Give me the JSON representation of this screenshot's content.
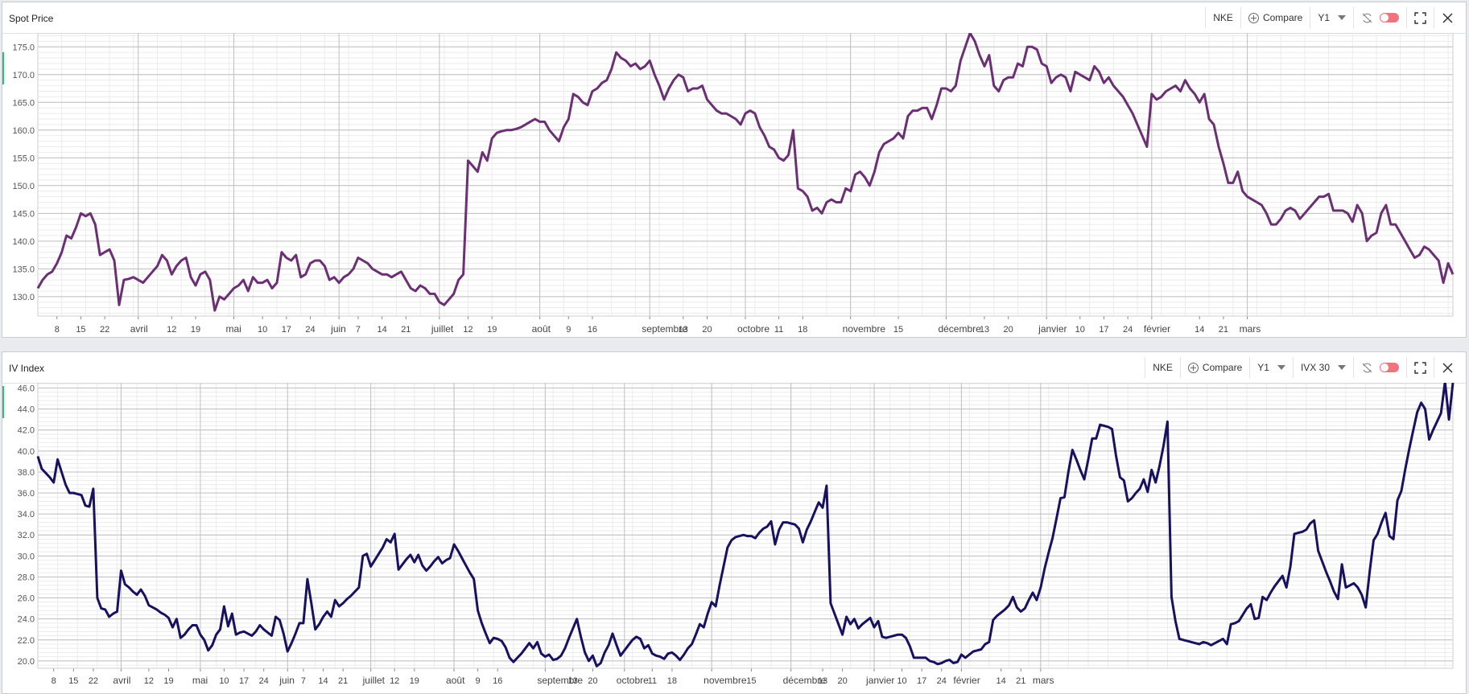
{
  "colors": {
    "spot_line": "#6b2f74",
    "iv_line": "#171160",
    "grid_major": "#bfbfbf",
    "grid_minor": "#ebebeb",
    "toggle": "#f2727e"
  },
  "months_axis": {
    "days": [
      {
        "label": "8",
        "i": 4
      },
      {
        "label": "15",
        "i": 9
      },
      {
        "label": "22",
        "i": 14
      },
      {
        "label": "avril",
        "i": 21,
        "major": true
      },
      {
        "label": "12",
        "i": 28
      },
      {
        "label": "19",
        "i": 33
      },
      {
        "label": "mai",
        "i": 41,
        "major": true
      },
      {
        "label": "10",
        "i": 47
      },
      {
        "label": "17",
        "i": 52
      },
      {
        "label": "24",
        "i": 57
      },
      {
        "label": "juin",
        "i": 63,
        "major": true
      },
      {
        "label": "7",
        "i": 67
      },
      {
        "label": "14",
        "i": 72
      },
      {
        "label": "21",
        "i": 77
      },
      {
        "label": "juillet",
        "i": 84,
        "major": true
      },
      {
        "label": "12",
        "i": 90
      },
      {
        "label": "19",
        "i": 95
      },
      {
        "label": "août",
        "i": 105,
        "major": true
      },
      {
        "label": "9",
        "i": 111
      },
      {
        "label": "16",
        "i": 116
      },
      {
        "label": "septembre",
        "i": 128,
        "major": true
      },
      {
        "label": "13",
        "i": 135
      },
      {
        "label": "20",
        "i": 140
      },
      {
        "label": "octobre",
        "i": 148,
        "major": true
      },
      {
        "label": "11",
        "i": 155
      },
      {
        "label": "18",
        "i": 160
      },
      {
        "label": "novembre",
        "i": 170,
        "major": true
      },
      {
        "label": "15",
        "i": 180
      },
      {
        "label": "décembre",
        "i": 190,
        "major": true
      },
      {
        "label": "13",
        "i": 198
      },
      {
        "label": "20",
        "i": 203
      },
      {
        "label": "janvier",
        "i": 211,
        "major": true
      },
      {
        "label": "10",
        "i": 218
      },
      {
        "label": "17",
        "i": 223
      },
      {
        "label": "24",
        "i": 228
      },
      {
        "label": "février",
        "i": 233,
        "major": true
      },
      {
        "label": "14",
        "i": 243
      },
      {
        "label": "21",
        "i": 248
      },
      {
        "label": "mars",
        "i": 253,
        "major": true
      }
    ]
  },
  "spot_panel": {
    "title": "Spot Price",
    "toolbar": {
      "ticker": "NKE",
      "compare": "Compare",
      "period": "Y1"
    }
  },
  "iv_panel": {
    "title": "IV Index",
    "toolbar": {
      "ticker": "NKE",
      "compare": "Compare",
      "period": "Y1",
      "measure": "IVX 30"
    }
  },
  "chart_data": [
    {
      "type": "line",
      "title": "Spot Price",
      "xlabel": "",
      "ylabel": "",
      "ylim": [
        126.5,
        177.5
      ],
      "yticks": [
        "175.0",
        "170.0",
        "165.0",
        "160.0",
        "155.0",
        "150.0",
        "145.0",
        "140.0",
        "135.0",
        "130.0"
      ],
      "grid": true,
      "series": [
        {
          "values": [
            131.5,
            133.0,
            134.0,
            134.5,
            136.0,
            138.0,
            141.0,
            140.5,
            142.5,
            145.0,
            144.5,
            145.0,
            143.0,
            137.5,
            138.0,
            138.5,
            136.5,
            128.5,
            133.0,
            133.2,
            133.5,
            133.0,
            132.5,
            133.5,
            134.5,
            135.5,
            137.5,
            136.5,
            134.0,
            135.5,
            136.5,
            137.0,
            133.5,
            132.0,
            134.0,
            134.5,
            133.0,
            127.5,
            130.0,
            129.5,
            130.5,
            131.5,
            132.0,
            133.0,
            131.0,
            133.5,
            132.5,
            132.5,
            133.0,
            131.5,
            132.5,
            138.0,
            137.0,
            136.5,
            137.5,
            133.5,
            134.0,
            136.0,
            136.5,
            136.5,
            135.5,
            133.0,
            133.5,
            132.5,
            133.5,
            134.0,
            135.0,
            137.0,
            136.5,
            136.0,
            135.0,
            134.5,
            134.0,
            134.0,
            133.5,
            134.0,
            134.5,
            133.0,
            131.5,
            131.0,
            132.0,
            131.5,
            130.5,
            130.5,
            129.0,
            128.5,
            129.5,
            130.5,
            133.0,
            134.0,
            154.5,
            153.5,
            152.5,
            156.0,
            154.5,
            158.5,
            159.5,
            159.8,
            160.0,
            160.0,
            160.2,
            160.5,
            161.0,
            161.5,
            162.0,
            161.5,
            161.5,
            160.0,
            159.0,
            158.0,
            160.5,
            162.0,
            166.5,
            166.0,
            165.0,
            164.5,
            167.0,
            167.5,
            168.5,
            169.0,
            171.0,
            174.0,
            173.0,
            172.5,
            171.5,
            172.0,
            171.0,
            171.5,
            172.5,
            170.0,
            168.0,
            165.5,
            167.5,
            169.0,
            170.0,
            169.5,
            167.0,
            167.5,
            167.5,
            168.0,
            165.5,
            164.5,
            163.5,
            163.0,
            163.0,
            162.5,
            162.0,
            161.0,
            163.0,
            163.5,
            163.0,
            160.5,
            159.0,
            157.0,
            156.5,
            155.0,
            154.5,
            155.5,
            160.0,
            149.5,
            149.0,
            148.0,
            145.5,
            146.0,
            145.0,
            147.0,
            147.5,
            147.0,
            147.0,
            149.5,
            149.0,
            152.0,
            152.5,
            151.5,
            150.0,
            152.5,
            156.0,
            157.5,
            158.0,
            158.5,
            159.5,
            158.5,
            162.5,
            163.5,
            163.5,
            164.0,
            164.0,
            162.0,
            164.5,
            167.5,
            167.5,
            167.0,
            168.0,
            172.5,
            175.0,
            177.5,
            176.0,
            173.5,
            171.5,
            173.5,
            168.0,
            167.0,
            169.0,
            169.5,
            169.5,
            172.0,
            171.5,
            175.0,
            175.0,
            174.5,
            172.0,
            171.5,
            168.5,
            169.5,
            170.0,
            169.5,
            167.0,
            170.5,
            170.0,
            169.5,
            169.0,
            171.5,
            170.5,
            168.5,
            169.5,
            168.0,
            167.0,
            166.0,
            164.5,
            163.0,
            161.0,
            159.0,
            157.0,
            166.5,
            165.5,
            166.0,
            167.0,
            167.5,
            168.0,
            167.0,
            169.0,
            167.5,
            166.5,
            165.0,
            166.5,
            162.0,
            161.0,
            157.0,
            154.0,
            150.5,
            150.5,
            152.5,
            149.0,
            148.0,
            147.5,
            147.0,
            146.5,
            145.0,
            143.0,
            143.0,
            144.0,
            145.5,
            146.0,
            145.5,
            144.0,
            145.0,
            146.0,
            147.0,
            148.0,
            148.0,
            148.5,
            145.5,
            145.5,
            145.5,
            145.0,
            143.5,
            146.5,
            145.0,
            140.0,
            141.0,
            141.5,
            145.0,
            146.5,
            143.0,
            143.0,
            141.5,
            140.0,
            138.5,
            137.0,
            137.5,
            139.0,
            138.5,
            137.5,
            136.5,
            132.5,
            136.0,
            134.0
          ]
        }
      ]
    },
    {
      "type": "line",
      "title": "IV Index",
      "xlabel": "",
      "ylabel": "",
      "ylim": [
        19.3,
        46.5
      ],
      "yticks": [
        "46.0",
        "44.0",
        "42.0",
        "40.0",
        "38.0",
        "36.0",
        "34.0",
        "32.0",
        "30.0",
        "28.0",
        "26.0",
        "24.0",
        "22.0",
        "20.0"
      ],
      "grid": true,
      "series": [
        {
          "values": [
            39.5,
            38.3,
            37.9,
            37.5,
            37.0,
            39.2,
            38.0,
            36.8,
            36.0,
            36.0,
            35.9,
            35.8,
            34.8,
            34.7,
            36.4,
            26.0,
            25.0,
            24.9,
            24.2,
            24.5,
            24.7,
            28.6,
            27.3,
            27.0,
            26.6,
            26.3,
            26.8,
            26.2,
            25.3,
            25.1,
            24.9,
            24.6,
            24.4,
            24.1,
            23.2,
            24.0,
            22.2,
            22.5,
            23.0,
            23.4,
            23.4,
            22.5,
            22.0,
            21.0,
            21.5,
            22.5,
            23.0,
            25.2,
            23.3,
            24.5,
            22.5,
            22.7,
            22.8,
            22.6,
            22.4,
            22.8,
            23.4,
            23.0,
            22.7,
            22.4,
            24.2,
            23.9,
            22.6,
            20.9,
            21.7,
            22.6,
            23.6,
            23.6,
            27.8,
            25.5,
            23.0,
            23.5,
            24.2,
            24.7,
            24.2,
            25.8,
            25.2,
            25.5,
            25.9,
            26.2,
            26.6,
            27.0,
            30.0,
            30.2,
            29.0,
            29.6,
            30.2,
            30.8,
            31.6,
            31.3,
            32.1,
            28.7,
            29.2,
            29.7,
            30.1,
            29.4,
            30.1,
            29.1,
            28.6,
            29.0,
            29.5,
            29.9,
            29.3,
            29.6,
            29.8,
            31.1,
            30.5,
            29.8,
            29.1,
            28.4,
            27.8,
            24.8,
            23.6,
            22.6,
            21.7,
            22.2,
            22.1,
            21.9,
            21.3,
            20.3,
            19.9,
            20.3,
            20.7,
            21.2,
            21.7,
            21.2,
            21.8,
            20.7,
            20.4,
            20.6,
            20.1,
            20.2,
            20.5,
            21.2,
            22.2,
            23.1,
            24.0,
            22.3,
            20.8,
            20.0,
            20.5,
            19.5,
            19.8,
            20.8,
            21.5,
            22.6,
            21.5,
            20.5,
            21.0,
            21.5,
            22.0,
            22.3,
            22.1,
            21.2,
            21.5,
            20.7,
            20.5,
            20.4,
            20.2,
            20.7,
            20.8,
            20.5,
            20.1,
            20.6,
            21.2,
            21.6,
            22.5,
            23.5,
            23.2,
            24.5,
            25.6,
            25.2,
            27.2,
            29.0,
            30.8,
            31.5,
            31.8,
            31.9,
            32.0,
            31.9,
            31.9,
            31.7,
            32.2,
            32.6,
            32.8,
            33.3,
            31.1,
            32.5,
            33.2,
            33.2,
            33.1,
            33.0,
            32.6,
            31.3,
            32.5,
            33.3,
            34.2,
            35.1,
            34.6,
            36.7,
            25.5,
            24.5,
            23.5,
            22.5,
            24.2,
            23.5,
            24.0,
            23.1,
            23.5,
            23.8,
            24.1,
            23.2,
            23.8,
            22.3,
            22.2,
            22.3,
            22.4,
            22.5,
            22.5,
            22.2,
            21.4,
            20.3,
            20.3,
            20.3,
            20.3,
            20.0,
            19.9,
            19.7,
            19.8,
            20.0,
            20.1,
            19.8,
            19.9,
            20.6,
            20.3,
            20.6,
            20.9,
            21.0,
            21.1,
            21.6,
            21.8,
            23.9,
            24.3,
            24.6,
            24.9,
            25.3,
            26.1,
            25.1,
            24.7,
            25.0,
            25.8,
            26.5,
            25.8,
            27.0,
            28.8,
            30.3,
            31.7,
            33.6,
            35.5,
            35.6,
            38.0,
            40.1,
            39.2,
            38.2,
            37.3,
            39.2,
            41.2,
            41.2,
            42.5,
            42.4,
            42.3,
            42.1,
            39.6,
            37.5,
            37.2,
            35.2,
            35.5,
            36.0,
            36.4,
            37.3,
            36.1,
            38.2,
            37.0,
            38.6,
            40.5,
            42.8,
            26.1,
            23.8,
            22.1,
            22.0,
            21.9,
            21.8,
            21.7,
            21.6,
            21.8,
            21.7,
            21.5,
            21.7,
            21.9,
            22.1,
            21.6,
            23.5,
            23.6,
            23.8,
            24.4,
            25.0,
            25.4,
            24.0,
            24.1,
            26.1,
            25.8,
            26.5,
            27.1,
            27.6,
            28.1,
            27.0,
            29.0,
            32.1,
            32.2,
            32.3,
            32.5,
            33.1,
            33.4,
            30.5,
            29.5,
            28.5,
            27.6,
            26.6,
            25.9,
            29.2,
            27.0,
            27.2,
            27.4,
            27.0,
            26.3,
            25.1,
            28.5,
            31.5,
            32.1,
            33.2,
            34.1,
            31.9,
            31.6,
            35.3,
            36.2,
            38.3,
            40.2,
            42.0,
            43.7,
            44.6,
            44.0,
            41.1,
            42.0,
            42.8,
            43.6,
            46.6,
            43.0,
            46.5
          ]
        }
      ]
    }
  ]
}
